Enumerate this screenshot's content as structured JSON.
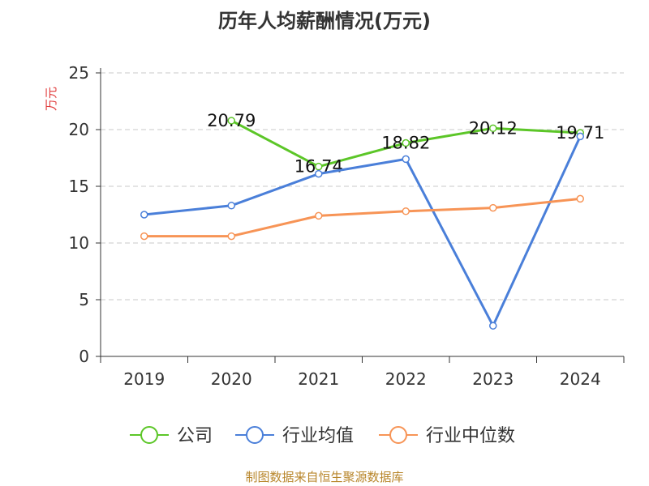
{
  "chart_data": {
    "type": "line",
    "title": "历年人均薪酬情况(万元)",
    "ylabel": "万元",
    "xlabel": "",
    "categories": [
      "2019",
      "2020",
      "2021",
      "2022",
      "2023",
      "2024"
    ],
    "ylim": [
      0,
      25
    ],
    "yticks": [
      "0",
      "5",
      "10",
      "15",
      "20",
      "25"
    ],
    "grid": true,
    "legend_position": "bottom",
    "series": [
      {
        "name": "公司",
        "color": "#5cc628",
        "values": [
          null,
          20.79,
          16.74,
          18.82,
          20.12,
          19.71
        ],
        "labels": [
          null,
          "20.79",
          "16.74",
          "18.82",
          "20.12",
          "19.71"
        ]
      },
      {
        "name": "行业均值",
        "color": "#4a7fd9",
        "values": [
          12.5,
          13.3,
          16.1,
          17.4,
          2.7,
          19.4
        ]
      },
      {
        "name": "行业中位数",
        "color": "#f79456",
        "values": [
          10.6,
          10.6,
          12.4,
          12.8,
          13.1,
          13.9
        ]
      }
    ]
  },
  "source_text": "制图数据来自恒生聚源数据库"
}
